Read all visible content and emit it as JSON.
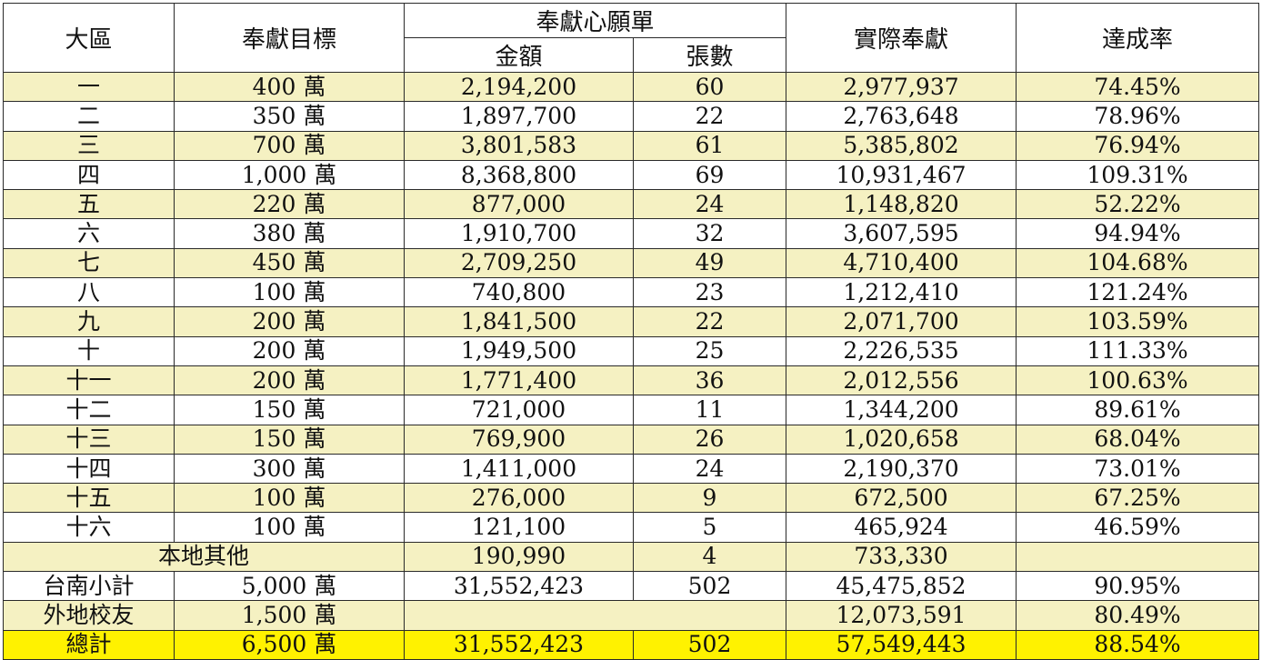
{
  "header": {
    "region": "大區",
    "target": "奉獻目標",
    "pledge_group": "奉獻心願單",
    "amount": "金額",
    "count": "張數",
    "actual": "實際奉獻",
    "rate": "達成率"
  },
  "rows": [
    {
      "region": "一",
      "target": "400 萬",
      "amount": "2,194,200",
      "count": "60",
      "actual": "2,977,937",
      "rate": "74.45%"
    },
    {
      "region": "二",
      "target": "350 萬",
      "amount": "1,897,700",
      "count": "22",
      "actual": "2,763,648",
      "rate": "78.96%"
    },
    {
      "region": "三",
      "target": "700 萬",
      "amount": "3,801,583",
      "count": "61",
      "actual": "5,385,802",
      "rate": "76.94%"
    },
    {
      "region": "四",
      "target": "1,000 萬",
      "amount": "8,368,800",
      "count": "69",
      "actual": "10,931,467",
      "rate": "109.31%"
    },
    {
      "region": "五",
      "target": "220 萬",
      "amount": "877,000",
      "count": "24",
      "actual": "1,148,820",
      "rate": "52.22%"
    },
    {
      "region": "六",
      "target": "380 萬",
      "amount": "1,910,700",
      "count": "32",
      "actual": "3,607,595",
      "rate": "94.94%"
    },
    {
      "region": "七",
      "target": "450 萬",
      "amount": "2,709,250",
      "count": "49",
      "actual": "4,710,400",
      "rate": "104.68%"
    },
    {
      "region": "八",
      "target": "100 萬",
      "amount": "740,800",
      "count": "23",
      "actual": "1,212,410",
      "rate": "121.24%"
    },
    {
      "region": "九",
      "target": "200 萬",
      "amount": "1,841,500",
      "count": "22",
      "actual": "2,071,700",
      "rate": "103.59%"
    },
    {
      "region": "十",
      "target": "200 萬",
      "amount": "1,949,500",
      "count": "25",
      "actual": "2,226,535",
      "rate": "111.33%"
    },
    {
      "region": "十一",
      "target": "200 萬",
      "amount": "1,771,400",
      "count": "36",
      "actual": "2,012,556",
      "rate": "100.63%"
    },
    {
      "region": "十二",
      "target": "150 萬",
      "amount": "721,000",
      "count": "11",
      "actual": "1,344,200",
      "rate": "89.61%"
    },
    {
      "region": "十三",
      "target": "150 萬",
      "amount": "769,900",
      "count": "26",
      "actual": "1,020,658",
      "rate": "68.04%"
    },
    {
      "region": "十四",
      "target": "300 萬",
      "amount": "1,411,000",
      "count": "24",
      "actual": "2,190,370",
      "rate": "73.01%"
    },
    {
      "region": "十五",
      "target": "100 萬",
      "amount": "276,000",
      "count": "9",
      "actual": "672,500",
      "rate": "67.25%"
    },
    {
      "region": "十六",
      "target": "100 萬",
      "amount": "121,100",
      "count": "5",
      "actual": "465,924",
      "rate": "46.59%"
    }
  ],
  "local_other": {
    "label": "本地其他",
    "amount": "190,990",
    "count": "4",
    "actual": "733,330",
    "rate": ""
  },
  "tainan_subtotal": {
    "label": "台南小計",
    "target": "5,000 萬",
    "amount": "31,552,423",
    "count": "502",
    "actual": "45,475,852",
    "rate": "90.95%"
  },
  "alumni_elsewhere": {
    "label": "外地校友",
    "target": "1,500 萬",
    "actual": "12,073,591",
    "rate": "80.49%"
  },
  "grand_total": {
    "label": "總計",
    "target": "6,500 萬",
    "amount": "31,552,423",
    "count": "502",
    "actual": "57,549,443",
    "rate": "88.54%"
  },
  "colors": {
    "shade": "#f5f1c2",
    "total": "#fff200"
  }
}
